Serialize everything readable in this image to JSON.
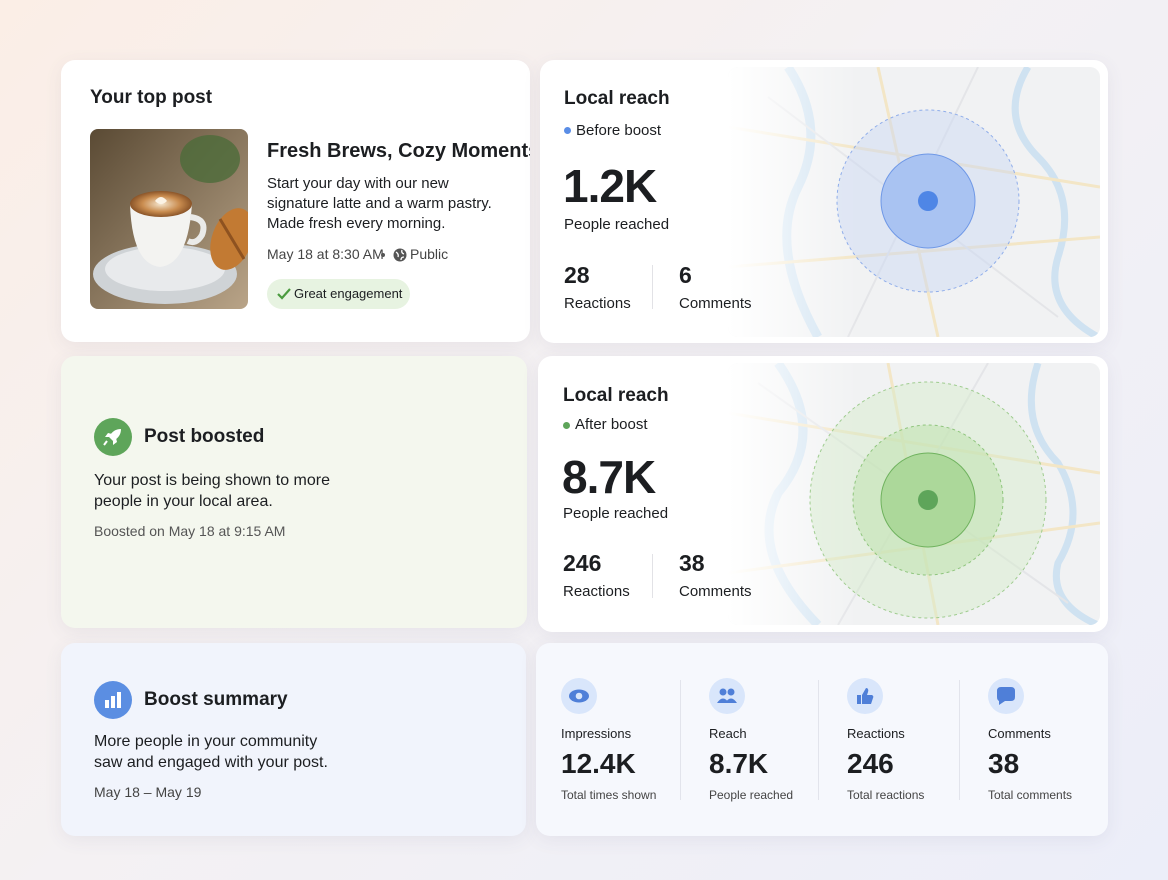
{
  "top_post": {
    "heading": "Your top post",
    "title": "Fresh Brews, Cozy Moments",
    "description": "Start your day with our new signature latte and a warm pastry. Made fresh every morning.",
    "date": "May 18 at 8:30 AM",
    "audience": "Public",
    "badge": "Great engagement"
  },
  "reach_before": {
    "heading": "Local reach",
    "label": "Before boost",
    "value": "1.2K",
    "caption": "People reached",
    "stats": [
      {
        "value": "28",
        "label": "Reactions"
      },
      {
        "value": "6",
        "label": "Comments"
      }
    ]
  },
  "reach_after": {
    "heading": "Local reach",
    "label": "After boost",
    "value": "8.7K",
    "caption": "People reached",
    "stats": [
      {
        "value": "246",
        "label": "Reactions"
      },
      {
        "value": "38",
        "label": "Comments"
      }
    ]
  },
  "boost_status": {
    "heading": "Post boosted",
    "text": "Your post is being shown to more people in your local area.",
    "date": "Boosted on May 18 at 9:15 AM"
  },
  "summary": {
    "heading": "Boost summary",
    "text": "More people in your community saw and engaged with your post.",
    "dates": "May 18 – May 19"
  },
  "metrics": [
    {
      "label": "Impressions",
      "value": "12.4K",
      "caption": "Total times shown"
    },
    {
      "label": "Reach",
      "value": "8.7K",
      "caption": "People reached"
    },
    {
      "label": "Reactions",
      "value": "246",
      "caption": "Total reactions"
    },
    {
      "label": "Comments",
      "value": "38",
      "caption": "Total comments"
    }
  ]
}
